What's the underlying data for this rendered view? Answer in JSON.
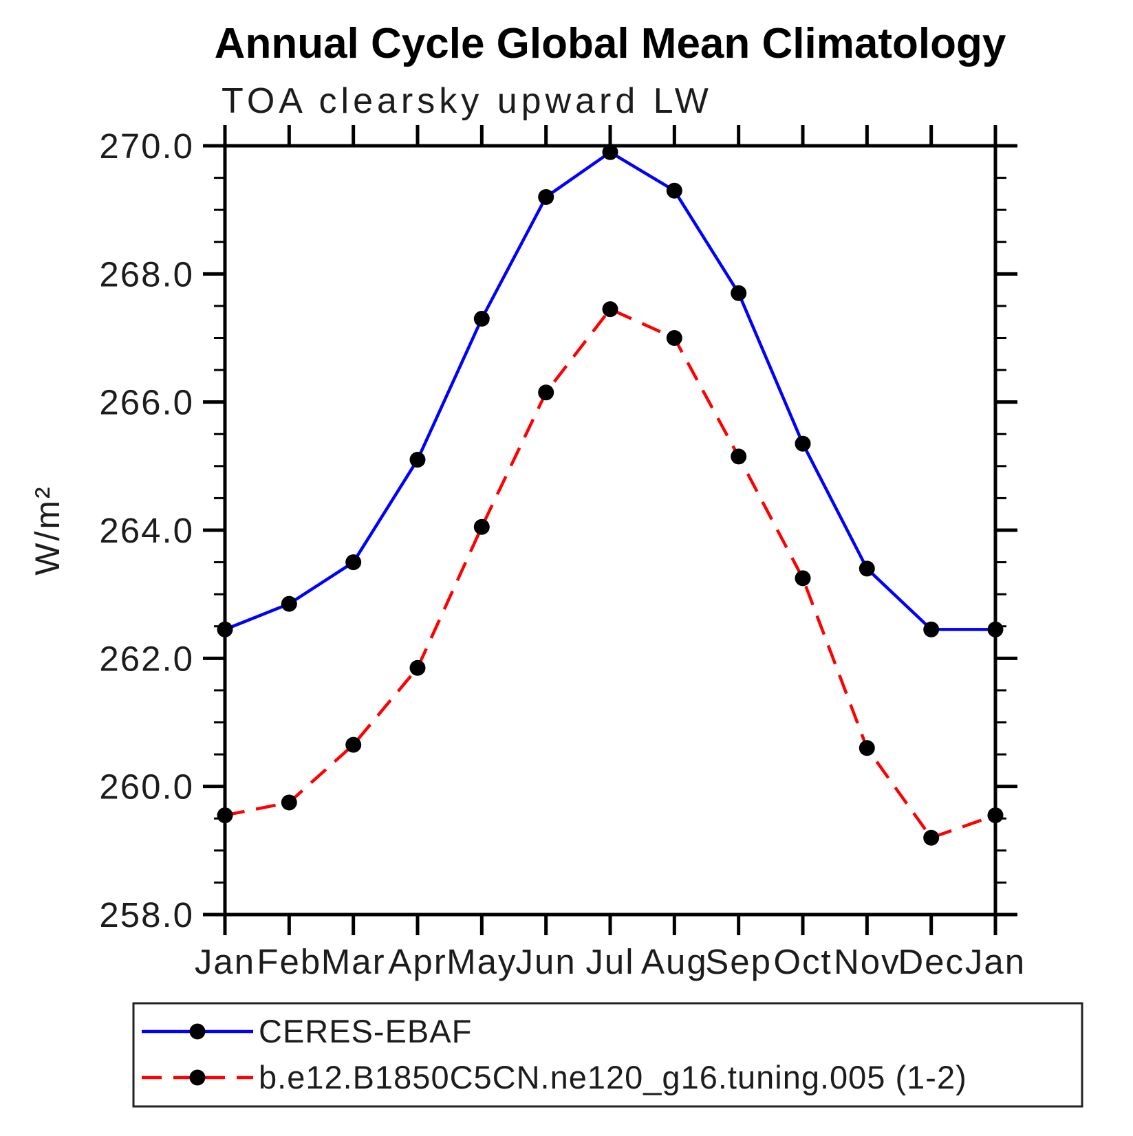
{
  "chart_data": {
    "type": "line",
    "title": "Annual Cycle Global Mean Climatology",
    "subtitle": "TOA clearsky upward LW",
    "ylabel": "W/m²",
    "ylim": [
      258.0,
      270.0
    ],
    "y_major_step": 2.0,
    "y_minor_step": 0.5,
    "y_tick_labels": [
      "258.0",
      "260.0",
      "262.0",
      "264.0",
      "266.0",
      "268.0",
      "270.0"
    ],
    "categories": [
      "Jan",
      "Feb",
      "Mar",
      "Apr",
      "May",
      "Jun",
      "Jul",
      "Aug",
      "Sep",
      "Oct",
      "Nov",
      "Dec",
      "Jan"
    ],
    "grid": false,
    "legend_position": "bottom",
    "frame": "box-with-outward-ticks",
    "series": [
      {
        "name": "CERES-EBAF",
        "color": "#0000ff",
        "line_style": "solid",
        "marker": "filled-circle",
        "marker_color": "#000000",
        "values": [
          262.45,
          262.85,
          263.5,
          265.1,
          267.3,
          269.2,
          269.9,
          269.3,
          267.7,
          265.35,
          263.4,
          262.45,
          262.45
        ]
      },
      {
        "name": "b.e12.B1850C5CN.ne120_g16.tuning.005 (1-2)",
        "color": "#ff0000",
        "line_style": "dashed",
        "marker": "filled-circle",
        "marker_color": "#000000",
        "values": [
          259.55,
          259.75,
          260.65,
          261.85,
          264.05,
          266.15,
          267.45,
          267.0,
          265.15,
          263.25,
          260.6,
          259.2,
          259.55
        ]
      }
    ]
  }
}
